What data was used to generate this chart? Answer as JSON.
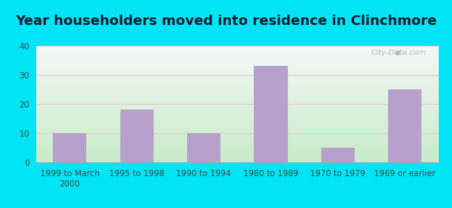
{
  "title": "Year householders moved into residence in Clinchmore",
  "categories": [
    "1999 to March\n2000",
    "1995 to 1998",
    "1990 to 1994",
    "1980 to 1989",
    "1970 to 1979",
    "1969 or earlier"
  ],
  "values": [
    10,
    18,
    10,
    33,
    5,
    25
  ],
  "bar_color": "#b8a0cc",
  "ylim": [
    0,
    40
  ],
  "yticks": [
    0,
    10,
    20,
    30,
    40
  ],
  "background_outer": "#00e5f5",
  "grid_color": "#e8c0c8",
  "title_fontsize": 14,
  "tick_fontsize": 8.5,
  "watermark": "City-Data.com",
  "bg_top_right": "#f5f8f8",
  "bg_bottom_left": "#c8ecc8"
}
